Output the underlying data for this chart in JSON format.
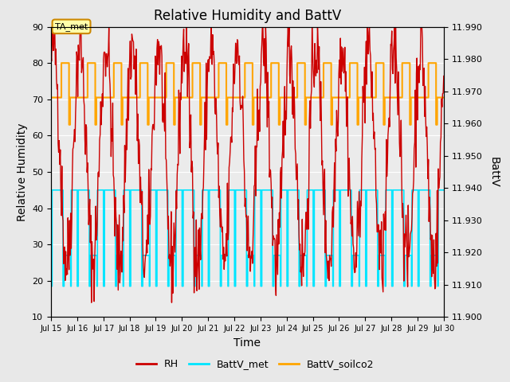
{
  "title": "Relative Humidity and BattV",
  "xlabel": "Time",
  "ylabel_left": "Relative Humidity",
  "ylabel_right": "BattV",
  "ylim_left": [
    10,
    90
  ],
  "ylim_right": [
    11.9,
    11.99
  ],
  "yticks_left": [
    10,
    20,
    30,
    40,
    50,
    60,
    70,
    80,
    90
  ],
  "yticks_right": [
    11.9,
    11.91,
    11.92,
    11.93,
    11.94,
    11.95,
    11.96,
    11.97,
    11.98,
    11.99
  ],
  "xtick_positions": [
    0,
    1,
    2,
    3,
    4,
    5,
    6,
    7,
    8,
    9,
    10,
    11,
    12,
    13,
    14,
    15
  ],
  "xtick_labels": [
    "Jul 15",
    "Jul 16",
    "Jul 17",
    "Jul 18",
    "Jul 19",
    "Jul 20",
    "Jul 21",
    "Jul 22",
    "Jul 23",
    "Jul 24",
    "Jul 25",
    "Jul 26",
    "Jul 27",
    "Jul 28",
    "Jul 29",
    "Jul 30"
  ],
  "annotation_text": "TA_met",
  "bg_color": "#e8e8e8",
  "plot_bg_color": "#ebebeb",
  "rh_color": "#cc0000",
  "battv_met_color": "#00e5ff",
  "battv_soilco2_color": "#ffa500",
  "legend_labels": [
    "RH",
    "BattV_met",
    "BattV_soilco2"
  ]
}
